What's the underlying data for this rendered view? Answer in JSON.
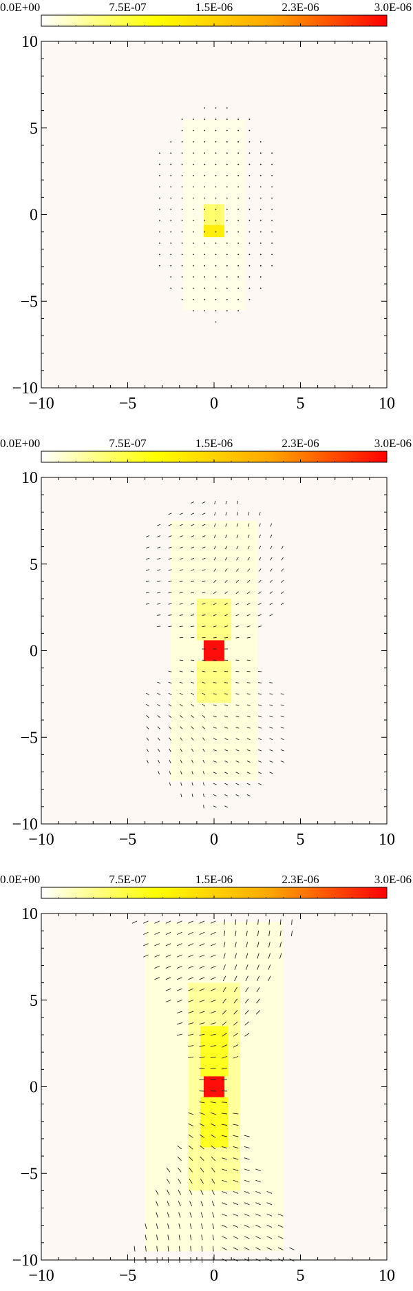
{
  "colorbar": {
    "tick_labels": [
      "0.0E+00",
      "7.5E-07",
      "1.5E-06",
      "2.3E-06",
      "3.0E-06"
    ],
    "min": 0.0,
    "max": 3e-06,
    "colors": [
      "#ffffff",
      "#ffff00",
      "#ffa500",
      "#ff0000"
    ]
  },
  "chart_data": [
    {
      "type": "heatmap",
      "title": "",
      "xlabel": "",
      "ylabel": "",
      "xlim": [
        -10,
        10
      ],
      "ylim": [
        -10,
        10
      ],
      "xticks": [
        "−10",
        "−5",
        "0",
        "5",
        "10"
      ],
      "yticks": [
        "−10",
        "−5",
        "0",
        "5",
        "10"
      ],
      "background_color": "#fdf8f4",
      "glyph_shape": "dots",
      "cells": [
        {
          "x": [
            -0.6,
            0.6
          ],
          "y": [
            -1.3,
            -0.6
          ],
          "value": 1.2e-06
        },
        {
          "x": [
            -0.6,
            0.6
          ],
          "y": [
            -0.6,
            0.6
          ],
          "value": 6e-07
        },
        {
          "x": [
            -1.8,
            1.8
          ],
          "y": [
            -5.5,
            5.5
          ],
          "value": 1e-07
        }
      ],
      "glyph_region": {
        "x": [
          -3.8,
          4.0
        ],
        "y": [
          -6.2,
          6.4
        ]
      }
    },
    {
      "type": "heatmap",
      "title": "",
      "xlabel": "",
      "ylabel": "",
      "xlim": [
        -10,
        10
      ],
      "ylim": [
        -10,
        10
      ],
      "xticks": [
        "−10",
        "−5",
        "0",
        "5",
        "10"
      ],
      "yticks": [
        "−10",
        "−5",
        "0",
        "5",
        "10"
      ],
      "background_color": "#fdf8f4",
      "glyph_shape": "dashes",
      "cells": [
        {
          "x": [
            -0.6,
            0.6
          ],
          "y": [
            -0.6,
            0.6
          ],
          "value": 3e-06
        },
        {
          "x": [
            -1.0,
            1.0
          ],
          "y": [
            0.6,
            3.0
          ],
          "value": 5e-07
        },
        {
          "x": [
            -1.0,
            1.0
          ],
          "y": [
            -3.0,
            -0.6
          ],
          "value": 5e-07
        },
        {
          "x": [
            -2.5,
            2.5
          ],
          "y": [
            -7.5,
            7.5
          ],
          "value": 1.5e-07
        }
      ],
      "glyph_region": {
        "x": [
          -4.5,
          4.5
        ],
        "y": [
          -9.0,
          9.0
        ]
      }
    },
    {
      "type": "heatmap",
      "title": "",
      "xlabel": "",
      "ylabel": "",
      "xlim": [
        -10,
        10
      ],
      "ylim": [
        -10,
        10
      ],
      "xticks": [
        "−10",
        "−5",
        "0",
        "5",
        "10"
      ],
      "yticks": [
        "−10",
        "−5",
        "0",
        "5",
        "10"
      ],
      "background_color": "#fdf8f4",
      "glyph_shape": "long-dashes",
      "cells": [
        {
          "x": [
            -0.6,
            0.6
          ],
          "y": [
            -0.6,
            0.6
          ],
          "value": 3e-06
        },
        {
          "x": [
            -0.8,
            0.8
          ],
          "y": [
            0.6,
            3.5
          ],
          "value": 9e-07
        },
        {
          "x": [
            -0.8,
            0.8
          ],
          "y": [
            -3.5,
            -0.6
          ],
          "value": 9e-07
        },
        {
          "x": [
            -1.5,
            1.5
          ],
          "y": [
            -6.0,
            6.0
          ],
          "value": 4e-07
        },
        {
          "x": [
            -4.0,
            4.0
          ],
          "y": [
            -9.5,
            9.5
          ],
          "value": 1.5e-07
        }
      ],
      "glyph_region": {
        "x": [
          -4.6,
          4.6
        ],
        "y": [
          -10.0,
          10.0
        ]
      }
    }
  ]
}
